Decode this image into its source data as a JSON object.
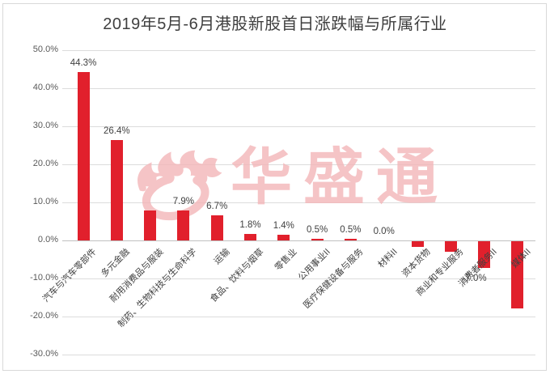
{
  "chart_data": {
    "type": "bar",
    "title": "2019年5月-6月港股新股首日涨跌幅与所属行业",
    "categories": [
      "汽车与汽车零部件",
      "多元金融",
      "耐用消费品与服装",
      "制药、生物科技与生命科学",
      "运输",
      "食品、饮料与烟草",
      "零售业",
      "公用事业II",
      "医疗保健设备与服务",
      "材料II",
      "资本货物",
      "商业和专业服务",
      "消费者服务II",
      "媒体II"
    ],
    "values": [
      44.3,
      26.4,
      7.9,
      7.9,
      6.7,
      1.8,
      1.4,
      0.5,
      0.5,
      0.0,
      -1.5,
      -2.8,
      -7.0,
      -17.7
    ],
    "data_labels": [
      "44.3%",
      "26.4%",
      "",
      "7.9%",
      "6.7%",
      "1.8%",
      "1.4%",
      "0.5%",
      "0.5%",
      "0.0%",
      "",
      "",
      "-7.0%",
      ""
    ],
    "xlabel": "",
    "ylabel": "",
    "ylim": [
      -30,
      50
    ],
    "ytick_step": 10,
    "yticks": [
      "50.0%",
      "40.0%",
      "30.0%",
      "20.0%",
      "10.0%",
      "0.0%",
      "-10.0%",
      "-20.0%",
      "-30.0%"
    ],
    "grid": true,
    "legend_position": "none",
    "bar_color": "#e1202c",
    "title_color": "#3f3f3f",
    "label_color": "#404040",
    "axis_label_color": "#595959",
    "gridline_color": "#dcdcdc",
    "watermark": {
      "text": "华盛通",
      "color": "#f3b6b8",
      "icon": "flame-icon"
    }
  }
}
